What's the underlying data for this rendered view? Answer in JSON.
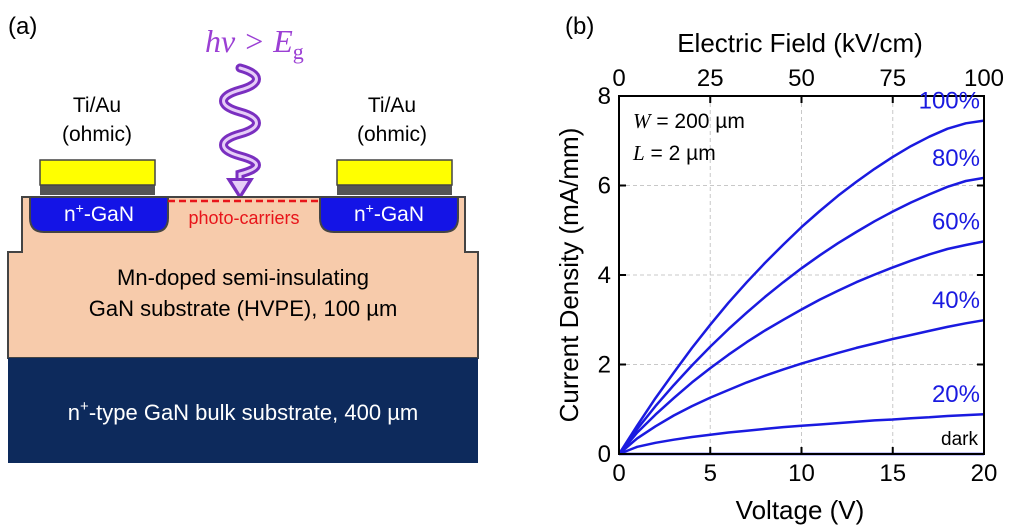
{
  "panel_a": {
    "label": "(a)",
    "light": {
      "h": "h",
      "nu": "ν",
      "gt": ">",
      "E": "E",
      "sub": "g",
      "color": "#9b3fd4"
    },
    "left_contact": {
      "line1": "Ti/Au",
      "line2": "(ohmic)"
    },
    "right_contact": {
      "line1": "Ti/Au",
      "line2": "(ohmic)"
    },
    "left_region": {
      "prefix": "n",
      "sup": "+",
      "suffix": "-GaN"
    },
    "right_region": {
      "prefix": "n",
      "sup": "+",
      "suffix": "-GaN"
    },
    "photo_carriers": "photo-carriers",
    "substrate": {
      "line1": "Mn-doped semi-insulating",
      "line2": "GaN substrate (HVPE), 100 µm"
    },
    "bulk": {
      "prefix": "n",
      "sup": "+",
      "suffix": "-type GaN bulk substrate, 400 µm"
    },
    "colors": {
      "contact": "#ffff00",
      "contact_base": "#555555",
      "n_region": "#1414e6",
      "substrate": "#f7cbab",
      "bulk": "#0d2a5c",
      "carriers": "#e8141a"
    }
  },
  "chart_data": {
    "panel_label": "(b)",
    "type": "line",
    "xlabel": "Voltage (V)",
    "ylabel": "Current Density (mA/mm)",
    "top_xlabel": "Electric Field (kV/cm)",
    "xlim": [
      0,
      20
    ],
    "ylim": [
      0,
      8
    ],
    "top_xlim": [
      0,
      100
    ],
    "xticks": [
      0,
      5,
      10,
      15,
      20
    ],
    "yticks": [
      0,
      2,
      4,
      6,
      8
    ],
    "top_xticks": [
      0,
      25,
      50,
      75,
      100
    ],
    "grid": true,
    "annotation": {
      "w_var": "W",
      "w_text": " = 200 µm",
      "l_var": "L",
      "l_text": " = 2 µm"
    },
    "line_color": "#1a1ae0",
    "x": [
      0,
      1,
      2,
      3,
      4,
      5,
      6,
      7,
      8,
      9,
      10,
      11,
      12,
      13,
      14,
      15,
      16,
      17,
      18,
      19,
      20
    ],
    "series": [
      {
        "name": "dark",
        "values": [
          0,
          0,
          0,
          0,
          0,
          0,
          0,
          0,
          0,
          0,
          0,
          0,
          0,
          0,
          0,
          0,
          0,
          0,
          0,
          0,
          0
        ]
      },
      {
        "name": "20%",
        "values": [
          0,
          0.16,
          0.25,
          0.32,
          0.38,
          0.43,
          0.48,
          0.52,
          0.56,
          0.6,
          0.63,
          0.66,
          0.69,
          0.72,
          0.75,
          0.77,
          0.8,
          0.82,
          0.85,
          0.87,
          0.89
        ]
      },
      {
        "name": "40%",
        "values": [
          0,
          0.35,
          0.62,
          0.86,
          1.07,
          1.26,
          1.43,
          1.6,
          1.75,
          1.89,
          2.02,
          2.14,
          2.26,
          2.37,
          2.47,
          2.57,
          2.66,
          2.75,
          2.84,
          2.92,
          2.99
        ]
      },
      {
        "name": "60%",
        "values": [
          0,
          0.48,
          0.88,
          1.25,
          1.6,
          1.92,
          2.22,
          2.5,
          2.76,
          3.0,
          3.23,
          3.45,
          3.65,
          3.84,
          4.01,
          4.17,
          4.32,
          4.46,
          4.58,
          4.67,
          4.75
        ]
      },
      {
        "name": "80%",
        "values": [
          0,
          0.56,
          1.07,
          1.54,
          1.98,
          2.4,
          2.79,
          3.16,
          3.51,
          3.84,
          4.15,
          4.44,
          4.71,
          4.96,
          5.2,
          5.42,
          5.62,
          5.8,
          5.97,
          6.1,
          6.17
        ]
      },
      {
        "name": "100%",
        "values": [
          0,
          0.64,
          1.25,
          1.82,
          2.37,
          2.89,
          3.38,
          3.84,
          4.27,
          4.68,
          5.07,
          5.43,
          5.77,
          6.08,
          6.37,
          6.64,
          6.88,
          7.09,
          7.27,
          7.39,
          7.45
        ]
      }
    ]
  }
}
